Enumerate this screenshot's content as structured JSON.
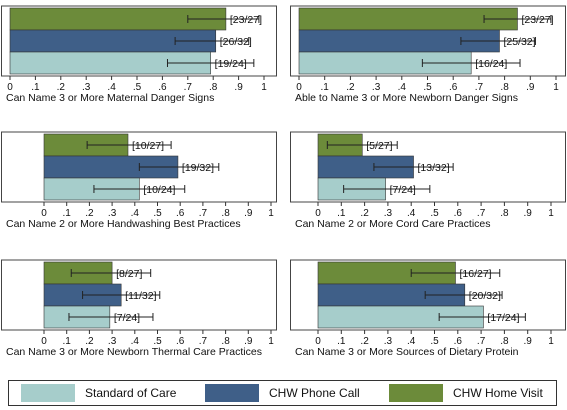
{
  "colors": {
    "standard_of_care": "#a6cdcb",
    "chw_phone_call": "#3f5f88",
    "chw_home_visit": "#6c8b3a"
  },
  "legend": {
    "standard_of_care": "Standard of Care",
    "chw_phone_call": "CHW Phone Call",
    "chw_home_visit": "CHW Home Visit"
  },
  "chart_data": [
    {
      "type": "bar",
      "orientation": "horizontal",
      "xlabel": "Can Name 3 or More Maternal Danger Signs",
      "xlim": [
        0,
        1
      ],
      "ticks": [
        "0",
        ".1",
        ".2",
        ".3",
        ".4",
        ".5",
        ".6",
        ".7",
        ".8",
        ".9",
        "1"
      ],
      "series": [
        {
          "group": "chw_home_visit",
          "value": 0.85,
          "ci": [
            0.7,
            0.98
          ],
          "label": "[23/27]"
        },
        {
          "group": "chw_phone_call",
          "value": 0.81,
          "ci": [
            0.65,
            0.94
          ],
          "label": "[26/32]"
        },
        {
          "group": "standard_of_care",
          "value": 0.79,
          "ci": [
            0.62,
            0.96
          ],
          "label": "[19/24]"
        }
      ]
    },
    {
      "type": "bar",
      "orientation": "horizontal",
      "xlabel": "Able to Name 3 or More Newborn Danger Signs",
      "xlim": [
        0,
        1
      ],
      "ticks": [
        "0",
        ".1",
        ".2",
        ".3",
        ".4",
        ".5",
        ".6",
        ".7",
        ".8",
        ".9",
        "1"
      ],
      "series": [
        {
          "group": "chw_home_visit",
          "value": 0.85,
          "ci": [
            0.72,
            0.98
          ],
          "label": "[23/27]"
        },
        {
          "group": "chw_phone_call",
          "value": 0.78,
          "ci": [
            0.63,
            0.92
          ],
          "label": "[25/32]"
        },
        {
          "group": "standard_of_care",
          "value": 0.67,
          "ci": [
            0.48,
            0.86
          ],
          "label": "[16/24]"
        }
      ]
    },
    {
      "type": "bar",
      "orientation": "horizontal",
      "xlabel": "Can Name 2 or More Handwashing Best Practices",
      "xlim": [
        0,
        1
      ],
      "ticks": [
        "0",
        ".1",
        ".2",
        ".3",
        ".4",
        ".5",
        ".6",
        ".7",
        ".8",
        ".9",
        "1"
      ],
      "series": [
        {
          "group": "chw_home_visit",
          "value": 0.37,
          "ci": [
            0.19,
            0.56
          ],
          "label": "[10/27]"
        },
        {
          "group": "chw_phone_call",
          "value": 0.59,
          "ci": [
            0.42,
            0.77
          ],
          "label": "[19/32]"
        },
        {
          "group": "standard_of_care",
          "value": 0.42,
          "ci": [
            0.22,
            0.62
          ],
          "label": "[10/24]"
        }
      ]
    },
    {
      "type": "bar",
      "orientation": "horizontal",
      "xlabel": "Can Name 2 or More Cord Care Practices",
      "xlim": [
        0,
        1
      ],
      "ticks": [
        "0",
        ".1",
        ".2",
        ".3",
        ".4",
        ".5",
        ".6",
        ".7",
        ".8",
        ".9",
        "1"
      ],
      "series": [
        {
          "group": "chw_home_visit",
          "value": 0.19,
          "ci": [
            0.04,
            0.34
          ],
          "label": "[5/27]"
        },
        {
          "group": "chw_phone_call",
          "value": 0.41,
          "ci": [
            0.24,
            0.58
          ],
          "label": "[13/32]"
        },
        {
          "group": "standard_of_care",
          "value": 0.29,
          "ci": [
            0.11,
            0.48
          ],
          "label": "[7/24]"
        }
      ]
    },
    {
      "type": "bar",
      "orientation": "horizontal",
      "xlabel": "Can Name 3 or More Newborn Thermal Care Practices",
      "xlim": [
        0,
        1
      ],
      "ticks": [
        "0",
        ".1",
        ".2",
        ".3",
        ".4",
        ".5",
        ".6",
        ".7",
        ".8",
        ".9",
        "1"
      ],
      "series": [
        {
          "group": "chw_home_visit",
          "value": 0.3,
          "ci": [
            0.12,
            0.47
          ],
          "label": "[8/27]"
        },
        {
          "group": "chw_phone_call",
          "value": 0.34,
          "ci": [
            0.17,
            0.51
          ],
          "label": "[11/32]"
        },
        {
          "group": "standard_of_care",
          "value": 0.29,
          "ci": [
            0.11,
            0.48
          ],
          "label": "[7/24]"
        }
      ]
    },
    {
      "type": "bar",
      "orientation": "horizontal",
      "xlabel": "Can Name 3 or More Sources of Dietary Protein",
      "xlim": [
        0,
        1
      ],
      "ticks": [
        "0",
        ".1",
        ".2",
        ".3",
        ".4",
        ".5",
        ".6",
        ".7",
        ".8",
        ".9",
        "1"
      ],
      "series": [
        {
          "group": "chw_home_visit",
          "value": 0.59,
          "ci": [
            0.4,
            0.78
          ],
          "label": "[16/27]"
        },
        {
          "group": "chw_phone_call",
          "value": 0.63,
          "ci": [
            0.46,
            0.79
          ],
          "label": "[20/32]"
        },
        {
          "group": "standard_of_care",
          "value": 0.71,
          "ci": [
            0.52,
            0.89
          ],
          "label": "[17/24]"
        }
      ]
    }
  ]
}
